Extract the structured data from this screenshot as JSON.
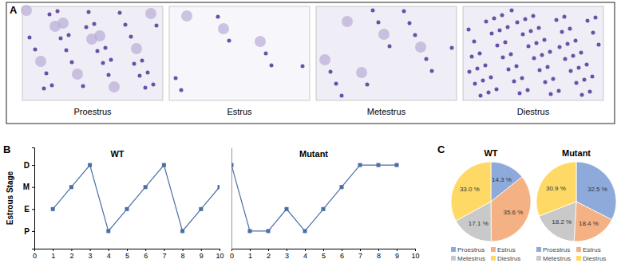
{
  "panel_labels": [
    "A",
    "B",
    "C"
  ],
  "panel_a": {
    "labels": [
      "Proestrus",
      "Estrus",
      "Metestrus",
      "Diestrus"
    ]
  },
  "chart_data": [
    {
      "type": "line",
      "title": "WT",
      "ylabel": "Estrous Stage",
      "x": [
        1,
        2,
        3,
        4,
        5,
        6,
        7,
        8,
        9,
        10
      ],
      "values": [
        1,
        2,
        3,
        0,
        1,
        2,
        3,
        0,
        1,
        2
      ],
      "xlim": [
        0,
        10
      ],
      "xticks": [
        0,
        1,
        2,
        3,
        4,
        5,
        6,
        7,
        8,
        9,
        10
      ],
      "ylim": [
        -0.8,
        3.8
      ],
      "yticks": [
        {
          "value": 0,
          "label": "P"
        },
        {
          "value": 1,
          "label": "E"
        },
        {
          "value": 2,
          "label": "M"
        },
        {
          "value": 3,
          "label": "D"
        }
      ],
      "color": "#4a6fa5",
      "marker": "square",
      "line_style": "solid",
      "grid": false
    },
    {
      "type": "line",
      "title": "Mutant",
      "x": [
        0,
        1,
        2,
        3,
        4,
        5,
        6,
        7,
        8,
        9
      ],
      "values": [
        3,
        0,
        0,
        1,
        0,
        1,
        2,
        3,
        3,
        3
      ],
      "xlim": [
        0,
        10
      ],
      "xticks": [
        0,
        1,
        2,
        3,
        4,
        5,
        6,
        7,
        8,
        9,
        10
      ],
      "ylim": [
        -0.8,
        3.8
      ],
      "tick_labels": "x",
      "color": "#4a6fa5",
      "marker": "square",
      "line_style": "solid",
      "grid": false
    },
    {
      "type": "pie",
      "title": "WT",
      "categories": [
        "Proestrus",
        "Estrus",
        "Metestrus",
        "Diestrus"
      ],
      "values": [
        14.3,
        35.6,
        17.1,
        33.0
      ],
      "value_labels": [
        "14.3 %",
        "35.6 %",
        "17.1 %",
        "33.0 %"
      ],
      "colors": [
        "#8eaadb",
        "#f4b183",
        "#c9c9c9",
        "#ffd966"
      ],
      "data_labels": true,
      "legend": "bottom"
    },
    {
      "type": "pie",
      "title": "Mutant",
      "categories": [
        "Proestrus",
        "Estrus",
        "Metestrus",
        "Diestrus"
      ],
      "values": [
        32.5,
        18.4,
        18.2,
        30.9
      ],
      "value_labels": [
        "32.5 %",
        "18.4 %",
        "18.2 %",
        "30.9 %"
      ],
      "colors": [
        "#8eaadb",
        "#f4b183",
        "#c9c9c9",
        "#ffd966"
      ],
      "data_labels": true,
      "legend": "bottom"
    }
  ]
}
